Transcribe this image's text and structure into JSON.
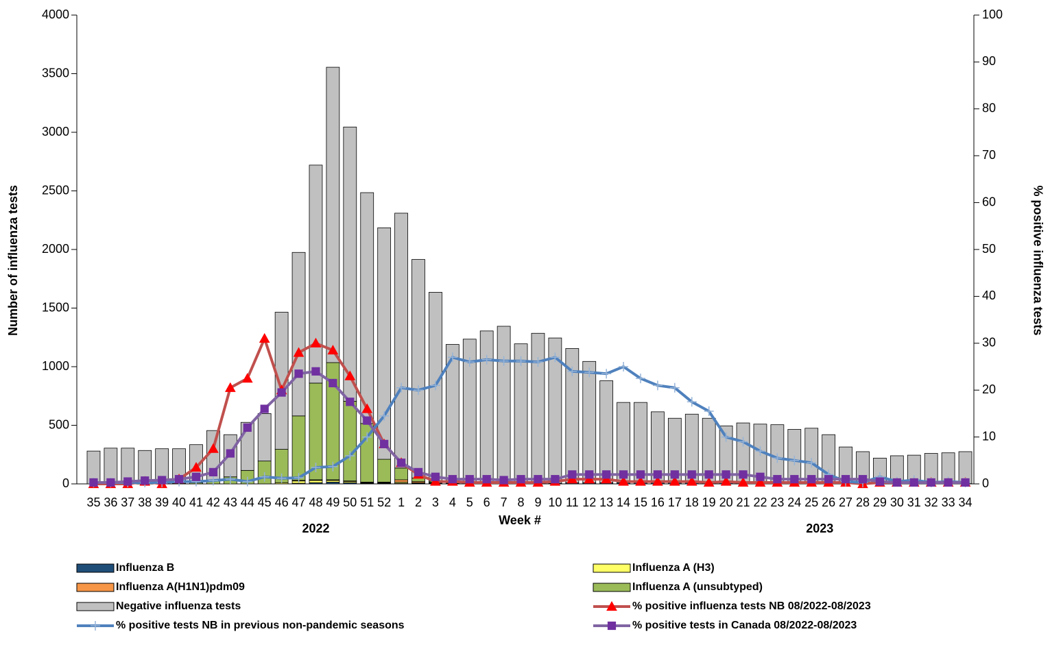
{
  "chart_data": {
    "type": "bar",
    "stacked": true,
    "xlabel": "Week #",
    "ylabel": "Number of influenza tests",
    "y2label": "% positive influenza tests",
    "annotations": [
      "2022",
      "2023"
    ],
    "categories": [
      "35",
      "36",
      "37",
      "38",
      "39",
      "40",
      "41",
      "42",
      "43",
      "44",
      "45",
      "46",
      "47",
      "48",
      "49",
      "50",
      "51",
      "52",
      "1",
      "2",
      "3",
      "4",
      "5",
      "6",
      "7",
      "8",
      "9",
      "10",
      "11",
      "12",
      "13",
      "14",
      "15",
      "16",
      "17",
      "18",
      "19",
      "20",
      "21",
      "22",
      "23",
      "24",
      "25",
      "26",
      "27",
      "28",
      "29",
      "30",
      "31",
      "32",
      "33",
      "34"
    ],
    "ylim": [
      0,
      4000
    ],
    "yticks": [
      0,
      500,
      1000,
      1500,
      2000,
      2500,
      3000,
      3500,
      4000
    ],
    "y2lim": [
      0,
      100
    ],
    "y2ticks": [
      0,
      10,
      20,
      30,
      40,
      50,
      60,
      70,
      80,
      90,
      100
    ],
    "series": [
      {
        "name": "Influenza B",
        "color": "#1f4e79",
        "values": [
          0,
          0,
          0,
          0,
          0,
          0,
          0,
          0,
          0,
          0,
          0,
          0,
          5,
          10,
          15,
          10,
          5,
          5,
          5,
          5,
          5,
          5,
          5,
          5,
          5,
          5,
          5,
          5,
          10,
          10,
          10,
          10,
          10,
          10,
          10,
          10,
          10,
          10,
          10,
          5,
          5,
          5,
          5,
          5,
          3,
          2,
          2,
          2,
          2,
          2,
          2,
          2
        ]
      },
      {
        "name": "Influenza A (H3)",
        "color": "#ffff66",
        "values": [
          0,
          0,
          0,
          0,
          0,
          0,
          0,
          0,
          0,
          0,
          0,
          10,
          20,
          20,
          15,
          10,
          5,
          5,
          10,
          5,
          3,
          0,
          0,
          0,
          0,
          0,
          0,
          0,
          0,
          0,
          0,
          0,
          0,
          0,
          0,
          0,
          0,
          0,
          0,
          0,
          0,
          0,
          0,
          0,
          0,
          0,
          0,
          0,
          0,
          0,
          0,
          0
        ]
      },
      {
        "name": "Influenza A(H1N1)pdm09",
        "color": "#f79646",
        "values": [
          0,
          0,
          0,
          0,
          0,
          0,
          0,
          0,
          0,
          0,
          0,
          0,
          5,
          5,
          5,
          5,
          5,
          5,
          20,
          10,
          5,
          0,
          0,
          0,
          0,
          0,
          0,
          0,
          0,
          0,
          0,
          0,
          0,
          0,
          0,
          0,
          0,
          0,
          0,
          0,
          0,
          0,
          0,
          0,
          0,
          0,
          0,
          0,
          0,
          0,
          0,
          0
        ]
      },
      {
        "name": "Influenza A (unsubtyped)",
        "color": "#9bbb59",
        "values": [
          0,
          0,
          0,
          0,
          0,
          5,
          10,
          30,
          60,
          115,
          195,
          285,
          550,
          825,
          1000,
          680,
          500,
          195,
          100,
          30,
          10,
          5,
          0,
          0,
          0,
          0,
          0,
          0,
          0,
          0,
          0,
          0,
          0,
          0,
          0,
          0,
          0,
          0,
          0,
          0,
          0,
          0,
          0,
          0,
          0,
          0,
          0,
          0,
          0,
          0,
          0,
          0
        ]
      },
      {
        "name": "Negative influenza tests",
        "color": "#c0c0c0",
        "values": [
          280,
          305,
          305,
          285,
          300,
          295,
          325,
          425,
          360,
          410,
          405,
          1170,
          1395,
          1860,
          2520,
          2340,
          1970,
          1975,
          2175,
          1865,
          1612,
          1180,
          1230,
          1300,
          1340,
          1190,
          1280,
          1240,
          1145,
          1035,
          870,
          685,
          685,
          605,
          550,
          585,
          550,
          485,
          510,
          505,
          500,
          460,
          470,
          415,
          312,
          273,
          218,
          238,
          243,
          258,
          263,
          273
        ]
      },
      {
        "name": "% positive influenza tests NB 08/2022-08/2023",
        "type": "line",
        "axis": "y2",
        "color": "#c0504d",
        "marker": "triangle",
        "marker_color": "#ff0000",
        "values": [
          0,
          0,
          0,
          0.5,
          0,
          1,
          3.5,
          7.5,
          20.5,
          22.5,
          31,
          20,
          28,
          30,
          28.5,
          23,
          16,
          8.5,
          4.5,
          2,
          0.5,
          0.5,
          0.3,
          0.3,
          0.3,
          0.3,
          0.3,
          0.5,
          1,
          1,
          1,
          0.5,
          0.5,
          0.5,
          0.5,
          0.5,
          0.3,
          0.5,
          0.3,
          0.3,
          0.3,
          0.3,
          0.3,
          0.3,
          0.3,
          0,
          0.3,
          0.3,
          0.3,
          0.3,
          0.3,
          0.3
        ]
      },
      {
        "name": "% positive tests NB in previous non-pandemic seasons",
        "type": "line",
        "axis": "y2",
        "color": "#4f81bd",
        "marker": "plus",
        "marker_color": "#95b3d7",
        "values": [
          0.3,
          0.3,
          0.3,
          0.3,
          0.3,
          0.5,
          0.5,
          0.7,
          1,
          0.5,
          1.5,
          1.2,
          1.3,
          3.5,
          3.7,
          6,
          10,
          14.5,
          20.5,
          20,
          21,
          27,
          26,
          26.5,
          26.2,
          26.2,
          26,
          27,
          24,
          23.8,
          23.5,
          25,
          22.5,
          21,
          20.5,
          17.5,
          15.5,
          10,
          9,
          7,
          5.5,
          5,
          4.5,
          2,
          0.5,
          0.3,
          1.5,
          0.5,
          0.8,
          0.3,
          0.5,
          0.3
        ]
      },
      {
        "name": "% positive tests  in Canada 08/2022-08/2023",
        "type": "line",
        "axis": "y2",
        "color": "#8064a2",
        "marker": "square",
        "marker_color": "#7030a0",
        "values": [
          0.3,
          0.3,
          0.5,
          0.7,
          0.8,
          1,
          1.5,
          2.5,
          6.5,
          12,
          16,
          19.5,
          23.5,
          24,
          21.5,
          17.5,
          13.5,
          8.5,
          4.5,
          2.5,
          1.5,
          1,
          1,
          1,
          0.8,
          1,
          1,
          1,
          2,
          2,
          2,
          2,
          2,
          2,
          2,
          2,
          2,
          2,
          2,
          1.5,
          1,
          1,
          1,
          1,
          1,
          1,
          0.5,
          0.3,
          0.3,
          0.3,
          0.3,
          0.3
        ]
      }
    ]
  }
}
